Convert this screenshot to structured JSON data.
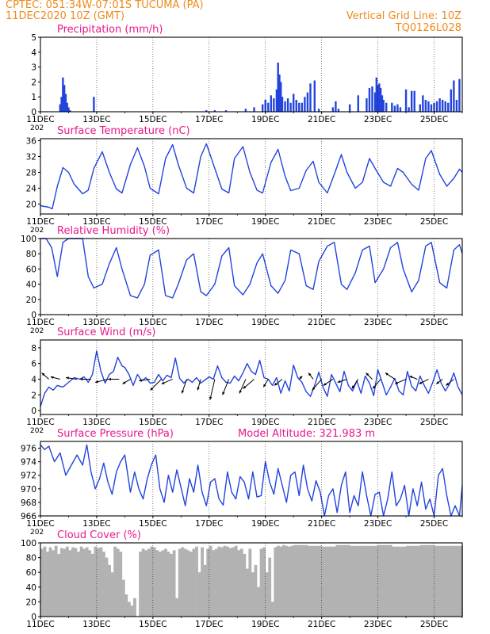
{
  "header": {
    "left_line1": "CPTEC:   051:34W-07:01S   TUCUMA (PA)",
    "left_line2": "11DEC2020 10Z (GMT)",
    "right_line1": "Vertical Grid Line: 10Z",
    "right_line2": "TQ0126L028"
  },
  "colors": {
    "header": "#ee8a1c",
    "title": "#e8198c",
    "line": "#2244dd",
    "cloud": "#b2b2b2",
    "arrow": "#000000"
  },
  "x_axis": {
    "ticks": [
      "11DEC",
      "13DEC",
      "15DEC",
      "17DEC",
      "19DEC",
      "21DEC",
      "23DEC",
      "25DEC"
    ],
    "year_label": "202",
    "range_days": [
      11,
      26
    ]
  },
  "chart_data": [
    {
      "type": "bar",
      "title": "Precipitation (mm/h)",
      "ylim": [
        0,
        5
      ],
      "yticks": [
        0,
        1,
        2,
        3,
        4,
        5
      ],
      "x": [
        11.7,
        11.75,
        11.8,
        11.85,
        11.9,
        11.95,
        12.0,
        12.05,
        12.9,
        16.9,
        17.2,
        17.6,
        18.3,
        18.6,
        18.9,
        19.0,
        19.1,
        19.2,
        19.3,
        19.4,
        19.45,
        19.5,
        19.55,
        19.6,
        19.7,
        19.8,
        19.9,
        20.0,
        20.1,
        20.2,
        20.3,
        20.4,
        20.5,
        20.6,
        20.75,
        20.9,
        21.4,
        21.5,
        21.6,
        22.0,
        22.3,
        22.6,
        22.7,
        22.8,
        22.9,
        22.95,
        23.0,
        23.05,
        23.1,
        23.15,
        23.2,
        23.3,
        23.5,
        23.6,
        23.7,
        23.8,
        24.0,
        24.1,
        24.2,
        24.3,
        24.5,
        24.6,
        24.7,
        24.8,
        24.9,
        25.0,
        25.1,
        25.2,
        25.3,
        25.4,
        25.5,
        25.6,
        25.7,
        25.8,
        25.9
      ],
      "values": [
        0.5,
        1.0,
        2.3,
        1.8,
        1.2,
        0.6,
        0.3,
        0.1,
        1.0,
        0.1,
        0.1,
        0.1,
        0.2,
        0.3,
        0.5,
        0.8,
        0.6,
        1.1,
        0.9,
        1.5,
        3.3,
        2.5,
        2.0,
        1.0,
        0.7,
        0.9,
        0.6,
        1.2,
        0.8,
        0.6,
        0.6,
        1.0,
        1.3,
        1.9,
        2.1,
        0.2,
        0.3,
        0.7,
        0.2,
        0.5,
        1.1,
        0.9,
        1.6,
        1.7,
        1.3,
        2.3,
        1.8,
        1.9,
        1.6,
        1.1,
        0.8,
        0.6,
        0.6,
        0.4,
        0.5,
        0.3,
        1.5,
        0.3,
        1.4,
        1.4,
        0.5,
        1.1,
        0.8,
        0.7,
        0.5,
        0.6,
        0.7,
        0.9,
        0.8,
        0.7,
        0.6,
        1.5,
        2.1,
        0.8,
        2.2
      ]
    },
    {
      "type": "line",
      "title": "Surface Temperature (nC)",
      "ylim": [
        17.5,
        36.5
      ],
      "yticks": [
        20,
        24,
        28,
        32,
        36
      ],
      "x": [
        11.0,
        11.3,
        11.42,
        11.6,
        11.8,
        12.0,
        12.2,
        12.5,
        12.7,
        12.9,
        13.2,
        13.45,
        13.7,
        13.9,
        14.2,
        14.45,
        14.7,
        14.9,
        15.2,
        15.45,
        15.7,
        15.9,
        16.2,
        16.45,
        16.7,
        16.9,
        17.2,
        17.45,
        17.7,
        17.9,
        18.2,
        18.45,
        18.7,
        18.9,
        19.2,
        19.45,
        19.7,
        19.9,
        20.2,
        20.45,
        20.7,
        20.9,
        21.2,
        21.45,
        21.7,
        21.9,
        22.2,
        22.45,
        22.7,
        22.9,
        23.2,
        23.45,
        23.7,
        23.9,
        24.2,
        24.45,
        24.7,
        24.9,
        25.2,
        25.45,
        25.7,
        25.9,
        26.0
      ],
      "values": [
        19.6,
        19.2,
        18.8,
        24.5,
        29.2,
        28.0,
        25.0,
        22.6,
        23.5,
        29.0,
        33.2,
        28.0,
        23.8,
        22.8,
        30.0,
        34.2,
        29.5,
        24.0,
        22.6,
        31.5,
        35.0,
        30.0,
        24.0,
        22.8,
        32.0,
        35.2,
        29.0,
        23.8,
        22.8,
        31.5,
        34.5,
        28.0,
        23.5,
        22.8,
        30.5,
        33.8,
        27.0,
        23.4,
        24.0,
        28.5,
        30.8,
        25.5,
        22.8,
        27.5,
        32.5,
        28.0,
        24.0,
        25.5,
        31.5,
        29.0,
        25.5,
        24.5,
        29.0,
        28.0,
        25.0,
        23.5,
        31.5,
        33.5,
        27.5,
        24.5,
        26.5,
        28.8,
        28.0
      ]
    },
    {
      "type": "line",
      "title": "Relative Humidity (%)",
      "ylim": [
        0,
        100
      ],
      "yticks": [
        0,
        20,
        40,
        60,
        80,
        100
      ],
      "x": [
        11.0,
        11.2,
        11.4,
        11.6,
        11.8,
        12.0,
        12.2,
        12.5,
        12.7,
        12.9,
        13.2,
        13.45,
        13.7,
        13.9,
        14.2,
        14.45,
        14.7,
        14.9,
        15.2,
        15.45,
        15.7,
        15.9,
        16.2,
        16.45,
        16.7,
        16.9,
        17.2,
        17.45,
        17.7,
        17.9,
        18.2,
        18.45,
        18.7,
        18.9,
        19.2,
        19.45,
        19.7,
        19.9,
        20.2,
        20.45,
        20.7,
        20.9,
        21.2,
        21.45,
        21.7,
        21.9,
        22.2,
        22.45,
        22.7,
        22.9,
        23.2,
        23.45,
        23.7,
        23.9,
        24.2,
        24.45,
        24.7,
        24.9,
        25.2,
        25.45,
        25.7,
        25.9,
        26.0
      ],
      "values": [
        100,
        100,
        88,
        50,
        95,
        100,
        100,
        100,
        50,
        35,
        40,
        67,
        88,
        60,
        25,
        22,
        40,
        78,
        85,
        25,
        22,
        40,
        72,
        80,
        30,
        25,
        40,
        77,
        88,
        38,
        26,
        40,
        68,
        80,
        38,
        28,
        45,
        85,
        80,
        38,
        33,
        70,
        90,
        95,
        40,
        33,
        55,
        85,
        90,
        42,
        60,
        88,
        95,
        60,
        30,
        45,
        90,
        95,
        42,
        35,
        85,
        92,
        80
      ]
    },
    {
      "type": "line",
      "title": "Surface Wind (m/s)",
      "ylim": [
        -0.5,
        9
      ],
      "yticks": [
        0,
        2,
        4,
        6,
        8
      ],
      "x": [
        11.0,
        11.15,
        11.3,
        11.45,
        11.6,
        11.8,
        12.0,
        12.2,
        12.4,
        12.55,
        12.7,
        12.85,
        13.0,
        13.15,
        13.3,
        13.45,
        13.6,
        13.75,
        13.9,
        14.0,
        14.15,
        14.3,
        14.45,
        14.6,
        14.75,
        14.9,
        15.05,
        15.2,
        15.35,
        15.5,
        15.65,
        15.8,
        15.95,
        16.1,
        16.25,
        16.4,
        16.55,
        16.7,
        16.85,
        17.0,
        17.15,
        17.3,
        17.45,
        17.6,
        17.75,
        17.9,
        18.05,
        18.2,
        18.35,
        18.5,
        18.65,
        18.8,
        18.95,
        19.1,
        19.25,
        19.4,
        19.55,
        19.7,
        19.85,
        20.0,
        20.15,
        20.3,
        20.45,
        20.6,
        20.75,
        20.9,
        21.05,
        21.2,
        21.35,
        21.5,
        21.65,
        21.8,
        21.95,
        22.1,
        22.25,
        22.4,
        22.55,
        22.7,
        22.85,
        23.0,
        23.15,
        23.3,
        23.45,
        23.6,
        23.75,
        23.9,
        24.05,
        24.2,
        24.35,
        24.5,
        24.65,
        24.8,
        24.95,
        25.1,
        25.25,
        25.4,
        25.55,
        25.7,
        25.85,
        26.0
      ],
      "values": [
        0.5,
        2.2,
        3.0,
        2.6,
        3.2,
        3.0,
        3.6,
        4.2,
        4.0,
        4.3,
        3.6,
        4.6,
        7.6,
        5.0,
        3.5,
        4.6,
        5.0,
        6.8,
        5.7,
        5.5,
        4.6,
        3.2,
        4.6,
        3.8,
        4.2,
        3.5,
        3.6,
        4.6,
        3.8,
        4.5,
        4.2,
        6.7,
        4.1,
        3.5,
        4.0,
        3.6,
        4.2,
        3.5,
        3.9,
        4.3,
        4.0,
        5.7,
        4.2,
        3.6,
        3.5,
        4.4,
        3.8,
        4.8,
        6.0,
        5.0,
        4.6,
        6.4,
        4.2,
        4.0,
        3.2,
        4.2,
        2.2,
        3.8,
        2.5,
        5.8,
        4.2,
        3.6,
        2.4,
        1.8,
        3.2,
        4.9,
        3.0,
        1.8,
        4.6,
        3.5,
        2.4,
        5.0,
        3.2,
        2.5,
        3.8,
        2.2,
        4.4,
        3.5,
        1.9,
        5.2,
        3.6,
        2.0,
        3.0,
        4.1,
        2.5,
        2.0,
        5.0,
        3.1,
        2.5,
        4.4,
        3.2,
        2.2,
        3.6,
        5.2,
        3.5,
        2.5,
        3.4,
        4.8,
        3.0,
        2.0
      ],
      "barbs": [
        {
          "x": 11.3,
          "dx": -9,
          "dy": -8
        },
        {
          "x": 11.7,
          "dx": -12,
          "dy": -3
        },
        {
          "x": 12.3,
          "dx": -14,
          "dy": -2
        },
        {
          "x": 12.8,
          "dx": -14,
          "dy": 0
        },
        {
          "x": 13.4,
          "dx": -16,
          "dy": 4
        },
        {
          "x": 13.8,
          "dx": -14,
          "dy": 0
        },
        {
          "x": 14.2,
          "dx": -10,
          "dy": 6
        },
        {
          "x": 14.9,
          "dx": -14,
          "dy": 2
        },
        {
          "x": 15.3,
          "dx": -14,
          "dy": 14
        },
        {
          "x": 15.7,
          "dx": -14,
          "dy": 6
        },
        {
          "x": 16.2,
          "dx": -6,
          "dy": 18
        },
        {
          "x": 16.7,
          "dx": -4,
          "dy": 14
        },
        {
          "x": 17.2,
          "dx": -6,
          "dy": 26
        },
        {
          "x": 17.7,
          "dx": -8,
          "dy": 20
        },
        {
          "x": 18.3,
          "dx": -8,
          "dy": 18
        },
        {
          "x": 18.6,
          "dx": -14,
          "dy": 12
        },
        {
          "x": 19.1,
          "dx": -6,
          "dy": 10
        },
        {
          "x": 19.6,
          "dx": -10,
          "dy": 8
        },
        {
          "x": 20.2,
          "dx": 4,
          "dy": -4
        },
        {
          "x": 20.7,
          "dx": -6,
          "dy": -8
        },
        {
          "x": 21.0,
          "dx": -12,
          "dy": 14
        },
        {
          "x": 21.4,
          "dx": -12,
          "dy": 8
        },
        {
          "x": 21.9,
          "dx": -12,
          "dy": 4
        },
        {
          "x": 22.3,
          "dx": -8,
          "dy": 12
        },
        {
          "x": 22.8,
          "dx": -8,
          "dy": -8
        },
        {
          "x": 23.1,
          "dx": -10,
          "dy": 12
        },
        {
          "x": 23.6,
          "dx": -12,
          "dy": -8
        },
        {
          "x": 24.0,
          "dx": -14,
          "dy": 6
        },
        {
          "x": 24.4,
          "dx": -10,
          "dy": -4
        },
        {
          "x": 24.8,
          "dx": -12,
          "dy": 6
        },
        {
          "x": 25.3,
          "dx": -8,
          "dy": 6
        },
        {
          "x": 25.7,
          "dx": -10,
          "dy": 8
        }
      ]
    },
    {
      "type": "line",
      "title": "Surface Pressure (hPa)",
      "annotation": "Model Altitude: 321.983 m",
      "ylim": [
        966,
        977
      ],
      "yticks": [
        966,
        968,
        970,
        972,
        974,
        976
      ],
      "x": [
        11.0,
        11.15,
        11.3,
        11.5,
        11.7,
        11.9,
        12.1,
        12.3,
        12.5,
        12.65,
        12.8,
        12.95,
        13.1,
        13.25,
        13.4,
        13.55,
        13.7,
        13.85,
        14.0,
        14.2,
        14.35,
        14.5,
        14.65,
        14.8,
        14.95,
        15.1,
        15.25,
        15.4,
        15.55,
        15.7,
        15.85,
        16.0,
        16.15,
        16.3,
        16.45,
        16.6,
        16.75,
        16.9,
        17.05,
        17.2,
        17.35,
        17.5,
        17.65,
        17.8,
        17.95,
        18.1,
        18.25,
        18.4,
        18.55,
        18.7,
        18.85,
        19.0,
        19.15,
        19.3,
        19.45,
        19.6,
        19.75,
        19.9,
        20.05,
        20.2,
        20.35,
        20.5,
        20.65,
        20.8,
        20.95,
        21.1,
        21.25,
        21.4,
        21.55,
        21.7,
        21.85,
        22.0,
        22.15,
        22.3,
        22.45,
        22.6,
        22.75,
        22.9,
        23.05,
        23.2,
        23.35,
        23.5,
        23.65,
        23.8,
        23.95,
        24.1,
        24.25,
        24.4,
        24.55,
        24.7,
        24.85,
        25.0,
        25.15,
        25.3,
        25.45,
        25.6,
        25.75,
        25.9,
        26.0
      ],
      "values": [
        976.5,
        975.8,
        976.3,
        974.0,
        975.3,
        972.0,
        973.5,
        975.0,
        973.5,
        976.5,
        972.5,
        970.0,
        971.5,
        973.8,
        971.0,
        969.2,
        972.5,
        974.0,
        975.0,
        969.5,
        972.5,
        970.0,
        968.5,
        971.5,
        973.6,
        975.0,
        970.0,
        968.0,
        972.0,
        969.5,
        972.8,
        970.2,
        967.5,
        971.5,
        969.5,
        973.5,
        969.5,
        967.5,
        971.0,
        971.5,
        968.5,
        967.6,
        972.5,
        969.5,
        968.5,
        971.8,
        971.0,
        968.5,
        972.5,
        968.8,
        969.0,
        974.0,
        971.0,
        969.2,
        973.0,
        970.5,
        968.0,
        972.0,
        972.5,
        969.0,
        973.5,
        970.0,
        968.2,
        971.2,
        969.5,
        966.0,
        969.0,
        970.0,
        966.5,
        970.5,
        972.5,
        966.5,
        969.0,
        967.5,
        972.5,
        969.0,
        966.0,
        969.2,
        969.5,
        966.0,
        968.5,
        972.5,
        967.5,
        968.5,
        970.5,
        966.0,
        970.0,
        967.5,
        971.0,
        967.0,
        968.5,
        966.0,
        972.0,
        973.0,
        969.0,
        966.0,
        967.5,
        966.0,
        970.5
      ]
    },
    {
      "type": "area",
      "title": "Cloud Cover (%)",
      "ylim": [
        0,
        100
      ],
      "yticks": [
        0,
        20,
        40,
        60,
        80,
        100
      ],
      "x": [
        11.0,
        11.1,
        11.2,
        11.3,
        11.4,
        11.5,
        11.6,
        11.7,
        11.8,
        11.9,
        12.0,
        12.1,
        12.2,
        12.3,
        12.4,
        12.5,
        12.6,
        12.7,
        12.8,
        12.9,
        13.0,
        13.1,
        13.2,
        13.3,
        13.4,
        13.5,
        13.6,
        13.7,
        13.8,
        13.9,
        14.0,
        14.1,
        14.2,
        14.3,
        14.4,
        14.5,
        14.6,
        14.7,
        14.8,
        14.9,
        15.0,
        15.1,
        15.2,
        15.3,
        15.4,
        15.5,
        15.6,
        15.7,
        15.8,
        15.9,
        16.0,
        16.1,
        16.2,
        16.3,
        16.4,
        16.5,
        16.6,
        16.7,
        16.8,
        16.9,
        17.0,
        17.1,
        17.2,
        17.3,
        17.4,
        17.5,
        17.6,
        17.7,
        17.8,
        17.9,
        18.0,
        18.1,
        18.2,
        18.3,
        18.4,
        18.5,
        18.6,
        18.7,
        18.8,
        18.9,
        19.0,
        19.1,
        19.2,
        19.3,
        19.4,
        19.5,
        19.6,
        19.7,
        19.8,
        19.9,
        20.0,
        20.5,
        21.0,
        21.5,
        22.0,
        22.5,
        23.0,
        23.5,
        24.0,
        24.5,
        25.0,
        25.5,
        26.0
      ],
      "values": [
        92,
        95,
        88,
        94,
        90,
        96,
        85,
        93,
        92,
        95,
        90,
        94,
        93,
        88,
        95,
        92,
        94,
        90,
        85,
        95,
        93,
        94,
        88,
        80,
        70,
        60,
        95,
        92,
        88,
        50,
        30,
        20,
        15,
        25,
        0,
        88,
        92,
        90,
        92,
        95,
        94,
        90,
        88,
        90,
        92,
        88,
        85,
        90,
        25,
        92,
        94,
        92,
        90,
        88,
        92,
        95,
        60,
        94,
        70,
        92,
        96,
        90,
        92,
        95,
        94,
        96,
        95,
        93,
        94,
        96,
        90,
        92,
        85,
        65,
        92,
        60,
        70,
        40,
        92,
        94,
        60,
        80,
        20,
        94,
        96,
        95,
        97,
        96,
        95,
        96,
        97,
        96,
        95,
        97,
        96,
        96,
        97,
        95,
        96,
        97,
        96,
        96,
        97
      ]
    }
  ]
}
